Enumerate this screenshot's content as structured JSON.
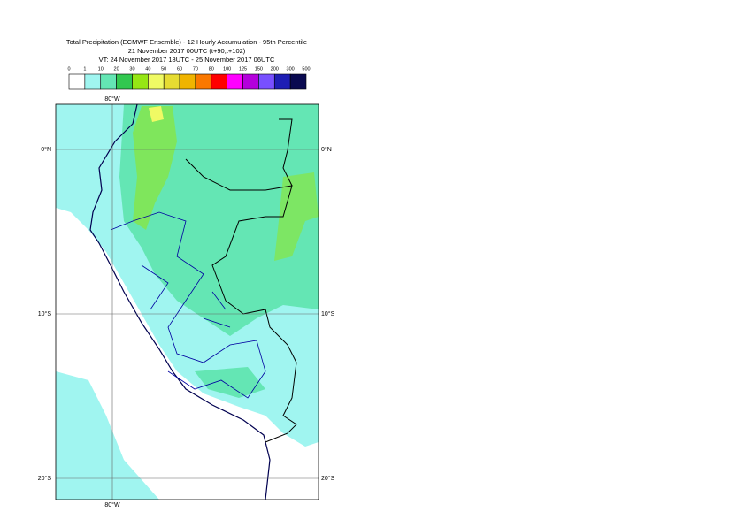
{
  "header": {
    "title": "Total Precipitation (ECMWF Ensemble) - 12 Hourly Accumulation - 95th Percentile",
    "subtitle": "21 November 2017 00UTC (t+90,t+102)",
    "valid_time": "VT: 24 November 2017 18UTC - 25 November 2017 06UTC"
  },
  "legend": {
    "bounds": [
      0,
      1,
      10,
      20,
      30,
      40,
      50,
      60,
      70,
      80,
      100,
      125,
      150,
      200,
      300,
      500
    ],
    "colors": [
      "#ffffff",
      "#a0f5f0",
      "#64e6b4",
      "#32c850",
      "#96e614",
      "#f0fa64",
      "#e6dc32",
      "#f0b400",
      "#fa7800",
      "#ff0000",
      "#ff00ff",
      "#b400dc",
      "#7850ff",
      "#1e1eb4",
      "#0a0a50"
    ]
  },
  "map": {
    "lon_labels": [
      "80°W"
    ],
    "lat_labels": [
      "0°N",
      "10°S",
      "20°S"
    ]
  }
}
